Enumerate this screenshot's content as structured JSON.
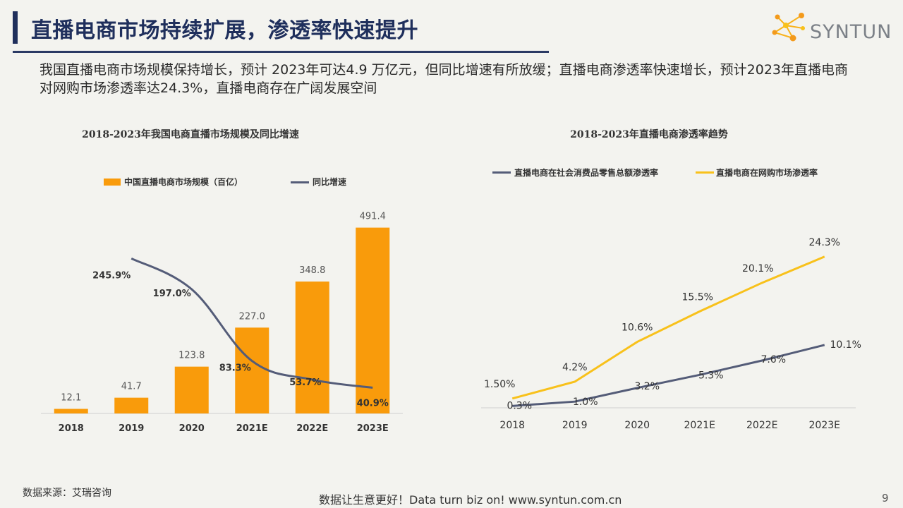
{
  "header": {
    "title": "直播电商市场持续扩展，渗透率快速提升",
    "logo_text": "SYNTUN"
  },
  "summary": "我国直播电商市场规模保持增长，预计 2023年可达4.9 万亿元，但同比增速有所放缓；直播电商渗透率快速增长，预计2023年直播电商对网购市场渗透率达24.3%，直播电商存在广阔发展空间",
  "footer": {
    "source": "数据来源：艾瑞咨询",
    "slogan": "数据让生意更好！Data turn biz on!  www.syntun.com.cn",
    "page_number": "9"
  },
  "colors": {
    "bar": "#f99b0b",
    "line_dark": "#545c78",
    "line_yellow": "#f8c11b",
    "title": "#1f2f5c"
  },
  "chart_data": [
    {
      "type": "bar",
      "title": "2018-2023年我国电商直播市场规模及同比增速",
      "categories": [
        "2018",
        "2019",
        "2020",
        "2021E",
        "2022E",
        "2023E"
      ],
      "series": [
        {
          "name": "中国直播电商市场规模（百亿）",
          "type": "bar",
          "values": [
            12.1,
            41.7,
            123.8,
            227.0,
            348.8,
            491.4
          ],
          "labels": [
            "12.1",
            "41.7",
            "123.8",
            "227.0",
            "348.8",
            "491.4"
          ]
        },
        {
          "name": "同比增速",
          "type": "line",
          "smooth": true,
          "values": [
            null,
            245.9,
            197.0,
            83.3,
            53.7,
            40.9
          ],
          "labels": [
            "",
            "245.9%",
            "197.0%",
            "83.3%",
            "53.7%",
            "40.9%"
          ]
        }
      ],
      "ylim": [
        0,
        500
      ],
      "y2lim": [
        0,
        300
      ],
      "legend": "top",
      "grid": false
    },
    {
      "type": "line",
      "title": "2018-2023年直播电商渗透率趋势",
      "categories": [
        "2018",
        "2019",
        "2020",
        "2021E",
        "2022E",
        "2023E"
      ],
      "series": [
        {
          "name": "直播电商在社会消费品零售总额渗透率",
          "values": [
            0.3,
            1.0,
            3.2,
            5.3,
            7.6,
            10.1
          ],
          "labels": [
            "0.3%",
            "1.0%",
            "3.2%",
            "5.3%",
            "7.6%",
            "10.1%"
          ]
        },
        {
          "name": "直播电商在网购市场渗透率",
          "values": [
            1.5,
            4.2,
            10.6,
            15.5,
            20.1,
            24.3
          ],
          "labels": [
            "1.50%",
            "4.2%",
            "10.6%",
            "15.5%",
            "20.1%",
            "24.3%"
          ]
        }
      ],
      "ylim": [
        0,
        27
      ],
      "legend": "top",
      "grid": false
    }
  ]
}
